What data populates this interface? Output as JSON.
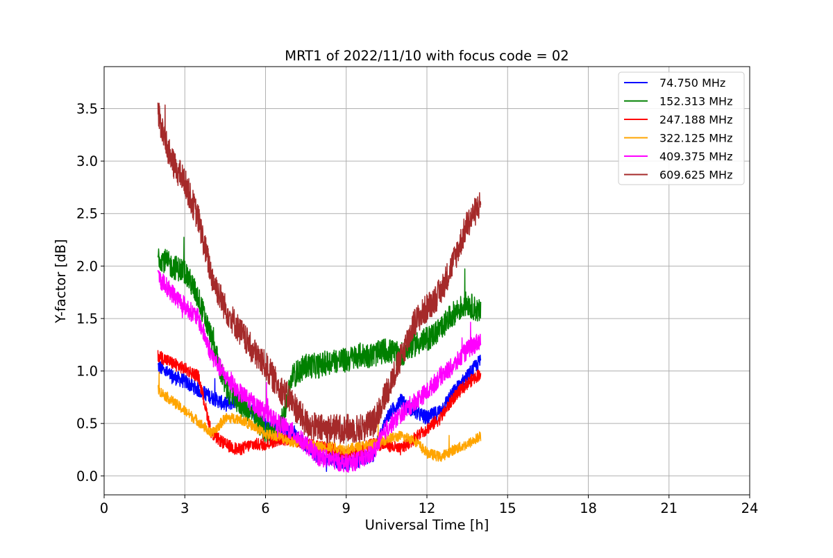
{
  "chart_data": {
    "type": "line",
    "title": "MRT1 of 2022/11/10 with focus code = 02",
    "xlabel": "Universal Time [h]",
    "ylabel": "Y-factor [dB]",
    "xlim": [
      0,
      24
    ],
    "ylim": [
      -0.18,
      3.9
    ],
    "xticks": [
      0,
      3,
      6,
      9,
      12,
      15,
      18,
      21,
      24
    ],
    "yticks": [
      0.0,
      0.5,
      1.0,
      1.5,
      2.0,
      2.5,
      3.0,
      3.5
    ],
    "xtick_labels": [
      "0",
      "3",
      "6",
      "9",
      "12",
      "15",
      "18",
      "21",
      "24"
    ],
    "ytick_labels": [
      "0.0",
      "0.5",
      "1.0",
      "1.5",
      "2.0",
      "2.5",
      "3.0",
      "3.5"
    ],
    "grid": true,
    "legend_position": "top-right",
    "series": [
      {
        "name": "  74.750 MHz",
        "color": "#0000ff",
        "x": [
          2.0,
          2.5,
          3.0,
          3.5,
          4.0,
          4.5,
          5.0,
          5.5,
          6.0,
          6.5,
          7.0,
          7.5,
          8.0,
          8.5,
          9.0,
          9.5,
          10.0,
          10.5,
          11.0,
          11.5,
          12.0,
          12.5,
          13.0,
          13.5,
          14.0
        ],
        "y": [
          1.05,
          0.95,
          0.9,
          0.82,
          0.75,
          0.68,
          0.72,
          0.62,
          0.48,
          0.45,
          0.4,
          0.3,
          0.18,
          0.15,
          0.12,
          0.15,
          0.2,
          0.55,
          0.72,
          0.62,
          0.55,
          0.62,
          0.8,
          0.95,
          1.1
        ],
        "noise": 0.07
      },
      {
        "name": "152.313 MHz",
        "color": "#008000",
        "x": [
          2.0,
          2.5,
          3.0,
          3.5,
          4.0,
          4.5,
          5.0,
          5.5,
          6.0,
          6.5,
          7.0,
          7.5,
          8.0,
          8.5,
          9.0,
          9.5,
          10.0,
          10.5,
          11.0,
          11.5,
          12.0,
          12.5,
          13.0,
          13.5,
          14.0
        ],
        "y": [
          2.1,
          2.0,
          1.95,
          1.7,
          1.3,
          0.85,
          0.7,
          0.6,
          0.42,
          0.4,
          0.95,
          1.05,
          1.05,
          1.1,
          1.1,
          1.15,
          1.15,
          1.2,
          1.15,
          1.25,
          1.3,
          1.4,
          1.55,
          1.65,
          1.55
        ],
        "noise": 0.12
      },
      {
        "name": "247.188 MHz",
        "color": "#ff0000",
        "x": [
          2.0,
          2.5,
          3.0,
          3.5,
          4.0,
          4.5,
          5.0,
          5.5,
          6.0,
          6.5,
          7.0,
          7.5,
          8.0,
          8.5,
          9.0,
          9.5,
          10.0,
          10.5,
          11.0,
          11.5,
          12.0,
          12.5,
          13.0,
          13.5,
          14.0
        ],
        "y": [
          1.15,
          1.08,
          1.02,
          0.95,
          0.4,
          0.3,
          0.25,
          0.3,
          0.3,
          0.35,
          0.35,
          0.3,
          0.28,
          0.25,
          0.2,
          0.25,
          0.3,
          0.3,
          0.25,
          0.35,
          0.45,
          0.55,
          0.75,
          0.88,
          0.98
        ],
        "noise": 0.06
      },
      {
        "name": "322.125 MHz",
        "color": "#ffa500",
        "x": [
          2.0,
          2.5,
          3.0,
          3.5,
          4.0,
          4.5,
          5.0,
          5.5,
          6.0,
          6.5,
          7.0,
          7.5,
          8.0,
          8.5,
          9.0,
          9.5,
          10.0,
          10.5,
          11.0,
          11.5,
          12.0,
          12.5,
          13.0,
          13.5,
          14.0
        ],
        "y": [
          0.82,
          0.72,
          0.62,
          0.52,
          0.4,
          0.55,
          0.55,
          0.48,
          0.4,
          0.38,
          0.32,
          0.3,
          0.28,
          0.28,
          0.25,
          0.28,
          0.3,
          0.35,
          0.38,
          0.35,
          0.22,
          0.18,
          0.25,
          0.3,
          0.38
        ],
        "noise": 0.05
      },
      {
        "name": "409.375 MHz",
        "color": "#ff00ff",
        "x": [
          2.0,
          2.5,
          3.0,
          3.5,
          4.0,
          4.5,
          5.0,
          5.5,
          6.0,
          6.5,
          7.0,
          7.5,
          8.0,
          8.5,
          9.0,
          9.5,
          10.0,
          10.5,
          11.0,
          11.5,
          12.0,
          12.5,
          13.0,
          13.5,
          14.0
        ],
        "y": [
          1.9,
          1.75,
          1.62,
          1.5,
          1.15,
          0.95,
          0.8,
          0.7,
          0.6,
          0.5,
          0.42,
          0.3,
          0.18,
          0.15,
          0.12,
          0.15,
          0.22,
          0.45,
          0.58,
          0.7,
          0.8,
          0.95,
          1.05,
          1.2,
          1.3
        ],
        "noise": 0.09
      },
      {
        "name": "609.625 MHz",
        "color": "#a52a2a",
        "x": [
          2.0,
          2.5,
          3.0,
          3.5,
          4.0,
          4.5,
          5.0,
          5.5,
          6.0,
          6.5,
          7.0,
          7.5,
          8.0,
          8.5,
          9.0,
          9.5,
          10.0,
          10.5,
          11.0,
          11.5,
          12.0,
          12.5,
          13.0,
          13.5,
          14.0
        ],
        "y": [
          3.45,
          3.0,
          2.8,
          2.45,
          1.9,
          1.6,
          1.4,
          1.2,
          1.05,
          0.85,
          0.7,
          0.5,
          0.45,
          0.45,
          0.45,
          0.45,
          0.5,
          0.8,
          1.1,
          1.45,
          1.6,
          1.75,
          2.05,
          2.4,
          2.6
        ],
        "noise": 0.14
      }
    ]
  }
}
